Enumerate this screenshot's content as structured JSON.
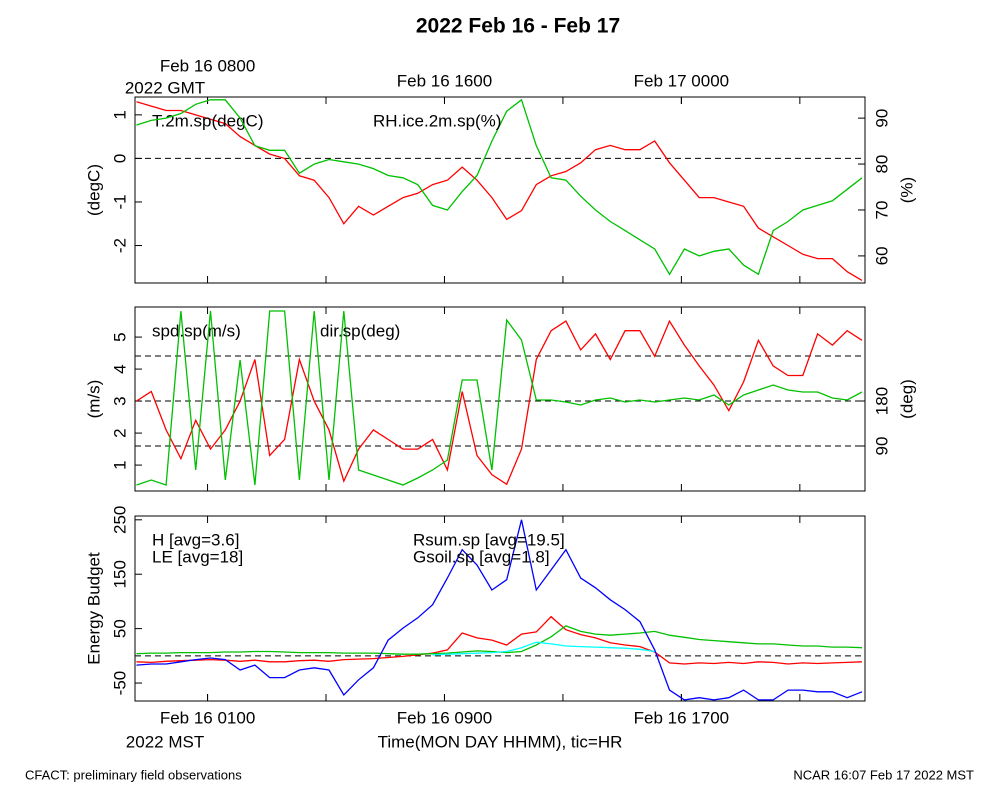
{
  "title": "2022 Feb 16 - Feb 17",
  "footer_left": "CFACT: preliminary field observations",
  "footer_right": "NCAR 16:07 Feb 17 2022 MST",
  "chart_data": [
    {
      "type": "line",
      "x": [
        -1.4,
        -0.9,
        -0.4,
        0.1,
        0.6,
        1.1,
        1.6,
        2.1,
        2.6,
        3.1,
        3.6,
        4.1,
        4.6,
        5.1,
        5.6,
        6.1,
        6.6,
        7.1,
        7.6,
        8.1,
        8.6,
        9.1,
        9.6,
        10.1,
        10.6,
        11.1,
        11.6,
        12.1,
        12.6,
        13.1,
        13.6,
        14.1,
        14.6,
        15.1,
        15.6,
        16.1,
        16.6,
        17.1,
        17.6,
        18.1,
        18.6,
        19.1,
        19.6,
        20.1,
        20.6,
        21.1,
        21.6,
        22.1,
        22.6,
        23.1
      ],
      "xlim": [
        -1.45,
        23.2
      ],
      "xtick_marks": [
        1,
        5,
        9,
        13,
        17,
        21
      ],
      "x2ticks": [
        {
          "value": 1,
          "label": "Feb 16 0800"
        },
        {
          "value": 9,
          "label": "Feb 16 1600"
        },
        {
          "value": 17,
          "label": "Feb 17 0000"
        }
      ],
      "x2_note": "2022 GMT",
      "ylim": [
        -2.86,
        1.41
      ],
      "yticks": [
        -2,
        -1,
        0,
        1
      ],
      "ylabel": "(degC)",
      "y2lim": [
        54.1,
        94.6
      ],
      "y2ticks": [
        60,
        70,
        80,
        90
      ],
      "y2label": "(%)",
      "hlines": [
        0
      ],
      "series": [
        {
          "name": "T.2m.sp(degC)",
          "color": "#ff0000",
          "values": [
            1.3,
            1.2,
            1.1,
            1.1,
            1.0,
            0.9,
            0.8,
            0.5,
            0.3,
            0.1,
            0.0,
            -0.4,
            -0.5,
            -0.9,
            -1.5,
            -1.1,
            -1.3,
            -1.1,
            -0.9,
            -0.8,
            -0.6,
            -0.5,
            -0.2,
            -0.5,
            -0.9,
            -1.4,
            -1.2,
            -0.6,
            -0.4,
            -0.3,
            -0.1,
            0.2,
            0.3,
            0.2,
            0.2,
            0.4,
            -0.1,
            -0.5,
            -0.9,
            -0.9,
            -1.0,
            -1.1,
            -1.6,
            -1.8,
            -2.0,
            -2.2,
            -2.3,
            -2.3,
            -2.6,
            -2.8
          ]
        },
        {
          "name": "RH.ice.2m.sp(%)",
          "color": "#00c000",
          "axis": "y2",
          "values": [
            88.5,
            89.5,
            90,
            91,
            93,
            94,
            94,
            90,
            84,
            83,
            83,
            78,
            80,
            81,
            80.5,
            80,
            79,
            77.5,
            77,
            75.5,
            71,
            70,
            74,
            77.5,
            85,
            91.5,
            94,
            84,
            77,
            76.5,
            73,
            70,
            67.5,
            65.5,
            63.5,
            61.5,
            56,
            61.5,
            60,
            61,
            61.5,
            58,
            56,
            65.5,
            67.5,
            70,
            71,
            72,
            74.5,
            77
          ]
        }
      ]
    },
    {
      "type": "line",
      "x": [
        -1.4,
        -0.9,
        -0.4,
        0.1,
        0.6,
        1.1,
        1.6,
        2.1,
        2.6,
        3.1,
        3.6,
        4.1,
        4.6,
        5.1,
        5.6,
        6.1,
        6.6,
        7.1,
        7.6,
        8.1,
        8.6,
        9.1,
        9.6,
        10.1,
        10.6,
        11.1,
        11.6,
        12.1,
        12.6,
        13.1,
        13.6,
        14.1,
        14.6,
        15.1,
        15.6,
        16.1,
        16.6,
        17.1,
        17.6,
        18.1,
        18.6,
        19.1,
        19.6,
        20.1,
        20.6,
        21.1,
        21.6,
        22.1,
        22.6,
        23.1
      ],
      "xlim": [
        -1.45,
        23.2
      ],
      "xtick_marks": [
        1,
        5,
        9,
        13,
        17,
        21
      ],
      "ylim": [
        0.19,
        5.94
      ],
      "yticks": [
        1,
        2,
        3,
        4,
        5
      ],
      "ylabel": "(m/s)",
      "y2lim": [
        0,
        368
      ],
      "y2ticks": [
        90,
        180
      ],
      "y2label": "(deg)",
      "y2_hlines": [
        90,
        180,
        270
      ],
      "series": [
        {
          "name": "spd.sp(m/s)",
          "color": "#ff0000",
          "values": [
            3.0,
            3.3,
            2.1,
            1.2,
            2.4,
            1.5,
            2.1,
            3.0,
            4.3,
            1.3,
            1.8,
            4.3,
            3.0,
            2.1,
            0.5,
            1.5,
            2.1,
            1.8,
            1.5,
            1.5,
            1.8,
            0.85,
            3.3,
            1.3,
            0.7,
            0.4,
            1.5,
            4.3,
            5.2,
            5.5,
            4.6,
            5.1,
            4.3,
            5.2,
            5.2,
            4.4,
            5.5,
            4.75,
            4.1,
            3.5,
            2.7,
            3.6,
            4.9,
            4.1,
            3.8,
            3.8,
            5.1,
            4.75,
            5.2,
            4.9
          ]
        },
        {
          "name": "dir.sp(deg)",
          "color": "#00c000",
          "axis": "y2",
          "values": [
            12,
            22,
            12,
            360,
            42,
            360,
            22,
            262,
            12,
            360,
            360,
            22,
            360,
            22,
            360,
            42,
            32,
            22,
            12,
            26,
            42,
            62,
            222,
            222,
            42,
            342,
            302,
            182,
            182,
            178,
            172,
            182,
            186,
            178,
            182,
            178,
            182,
            186,
            182,
            192,
            172,
            192,
            202,
            212,
            202,
            198,
            198,
            186,
            182,
            198
          ]
        }
      ]
    },
    {
      "type": "line",
      "x": [
        -1.4,
        -0.9,
        -0.4,
        0.1,
        0.6,
        1.1,
        1.6,
        2.1,
        2.6,
        3.1,
        3.6,
        4.1,
        4.6,
        5.1,
        5.6,
        6.1,
        6.6,
        7.1,
        7.6,
        8.1,
        8.6,
        9.1,
        9.6,
        10.1,
        10.6,
        11.1,
        11.6,
        12.1,
        12.6,
        13.1,
        13.6,
        14.1,
        14.6,
        15.1,
        15.6,
        16.1,
        16.6,
        17.1,
        17.6,
        18.1,
        18.6,
        19.1,
        19.6,
        20.1,
        20.6,
        21.1,
        21.6,
        22.1,
        22.6,
        23.1
      ],
      "xlim": [
        -1.45,
        23.2
      ],
      "xtick_marks": [
        1,
        5,
        9,
        13,
        17,
        21
      ],
      "xticks": [
        {
          "value": 1,
          "label": "Feb 16 0100"
        },
        {
          "value": 9,
          "label": "Feb 16 0900"
        },
        {
          "value": 17,
          "label": "Feb 16 1700"
        }
      ],
      "x_note": "2022 MST",
      "xlabel": "Time(MON DAY HHMM), tic=HR",
      "ylim": [
        -83,
        257
      ],
      "yticks": [
        -50,
        50,
        150,
        250
      ],
      "ylabel": "Energy Budget",
      "hlines": [
        0
      ],
      "series": [
        {
          "name": "H [avg=3.6]",
          "color": "#ff0000",
          "values": [
            -11,
            -12,
            -10,
            -9,
            -8,
            -7,
            -8,
            -10,
            -8,
            -11,
            -11,
            -9,
            -8,
            -10,
            -7,
            -6,
            -5,
            -3,
            -1,
            2,
            5,
            11,
            42,
            33,
            29,
            20,
            40,
            44,
            72,
            48,
            39,
            33,
            24,
            20,
            17,
            7,
            -13,
            -15,
            -13,
            -14,
            -12,
            -14,
            -11,
            -12,
            -15,
            -13,
            -14,
            -13,
            -12,
            -11
          ]
        },
        {
          "name": "LE [avg=18]",
          "color": "#00c000",
          "values": [
            4,
            5,
            5,
            6,
            6,
            6,
            7,
            7,
            8,
            8,
            7,
            6,
            6,
            6,
            5,
            5,
            5,
            4,
            3,
            3,
            4,
            5,
            7,
            9,
            8,
            6,
            8,
            20,
            35,
            55,
            45,
            40,
            38,
            40,
            42,
            45,
            38,
            34,
            30,
            28,
            26,
            24,
            22,
            22,
            20,
            18,
            18,
            16,
            16,
            15
          ]
        },
        {
          "name": "Rsum.sp [avg=19.5]",
          "color": "#0000ff",
          "values": [
            -17,
            -15,
            -15,
            -11,
            -7,
            -4,
            -7,
            -26,
            -17,
            -40,
            -40,
            -26,
            -22,
            -26,
            -72,
            -44,
            -22,
            29,
            51,
            70,
            94,
            143,
            195,
            167,
            121,
            140,
            250,
            121,
            158,
            195,
            143,
            125,
            103,
            85,
            63,
            11,
            -63,
            -81,
            -77,
            -81,
            -77,
            -63,
            -81,
            -81,
            -63,
            -63,
            -66,
            -66,
            -77,
            -66
          ]
        },
        {
          "name": "Gsoil.sp [avg=1.8]",
          "color": "#00ffff",
          "values": [
            null,
            null,
            null,
            null,
            null,
            null,
            null,
            null,
            null,
            null,
            null,
            null,
            null,
            null,
            null,
            null,
            null,
            null,
            null,
            null,
            2,
            3,
            4,
            5,
            6,
            8,
            15,
            25,
            22,
            18,
            17,
            16,
            15,
            14,
            12,
            8,
            null,
            null,
            null,
            null,
            null,
            null,
            null,
            null,
            null,
            null,
            null,
            null,
            null,
            null
          ]
        }
      ]
    }
  ]
}
